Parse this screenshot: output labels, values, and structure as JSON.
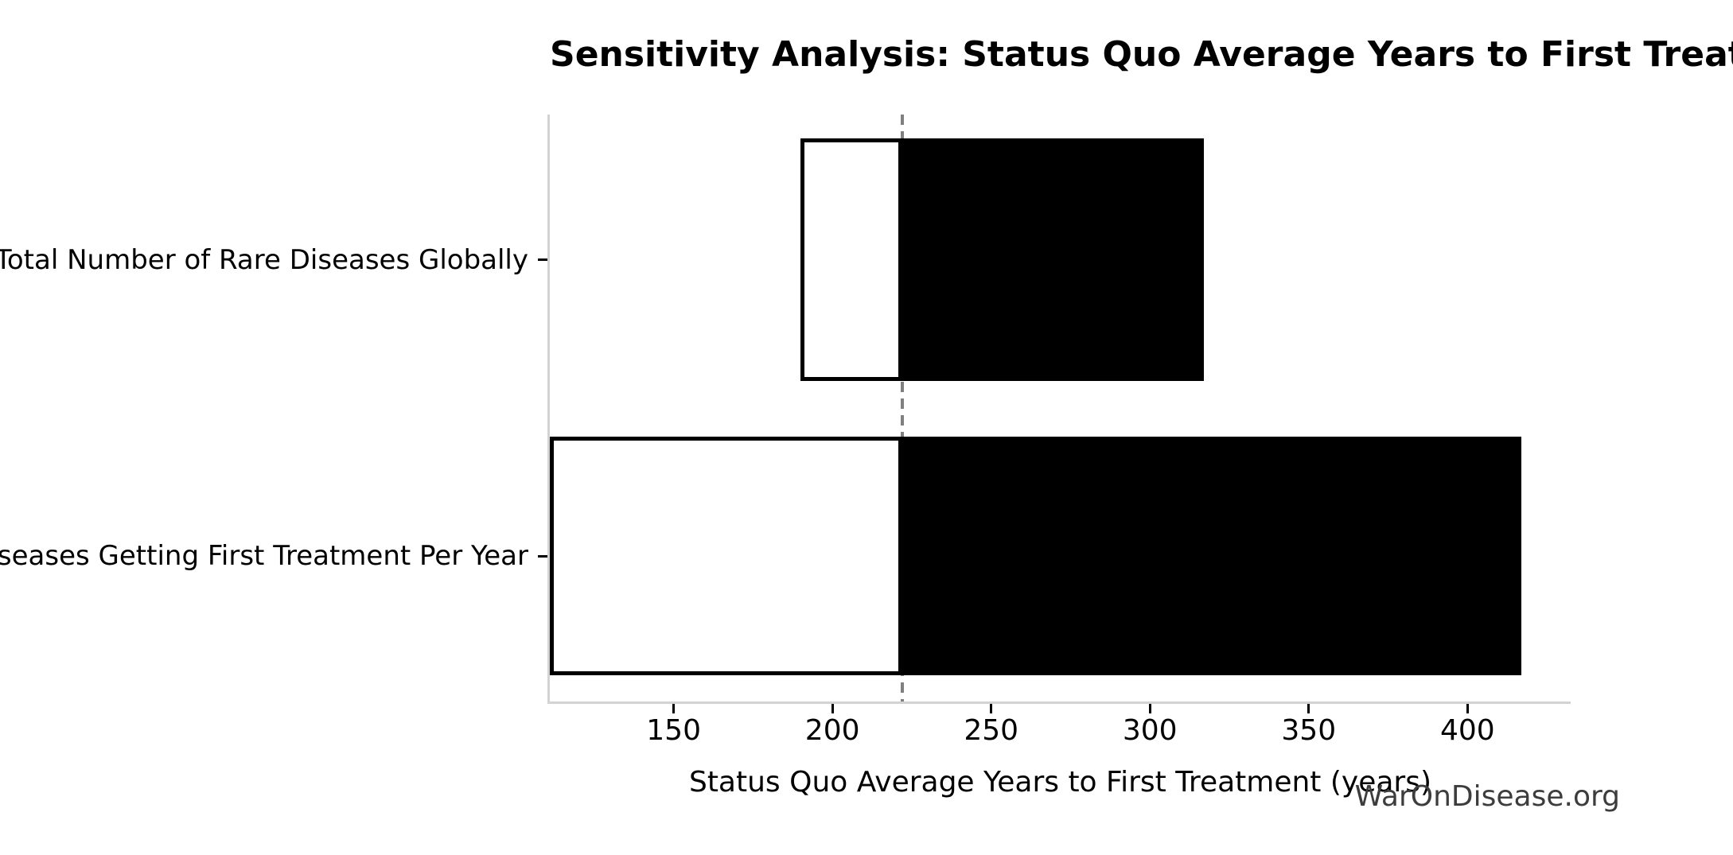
{
  "chart_data": {
    "type": "bar",
    "orientation": "horizontal",
    "subtype": "tornado-sensitivity",
    "title": "Sensitivity Analysis: Status Quo Average Years to First Treatment",
    "xlabel": "Status Quo Average Years to First Treatment (years)",
    "categories": [
      "Total Number of Rare Diseases Globally",
      "Diseases Getting First Treatment Per Year"
    ],
    "bars": [
      {
        "category": "Total Number of Rare Diseases Globally",
        "low": 190,
        "high": 317
      },
      {
        "category": "Diseases Getting First Treatment Per Year",
        "low": 111,
        "high": 417
      }
    ],
    "baseline": 222,
    "xticks": [
      150,
      200,
      250,
      300,
      350,
      400
    ],
    "xtick_labels": [
      "150",
      "200",
      "250",
      "300",
      "350",
      "400"
    ],
    "xlim": [
      111,
      432.5
    ],
    "grid": false,
    "legend": "none",
    "watermark": "WarOnDisease.org",
    "colors": {
      "bar_fill_low_side": "#ffffff",
      "bar_fill_high_side": "#000000",
      "bar_edge": "#000000",
      "baseline_dashed_line": "#808080",
      "axis_spine": "#d3d3d3",
      "tick_mark": "#000000",
      "text": "#000000",
      "watermark_text": "#3d3d3d"
    }
  }
}
